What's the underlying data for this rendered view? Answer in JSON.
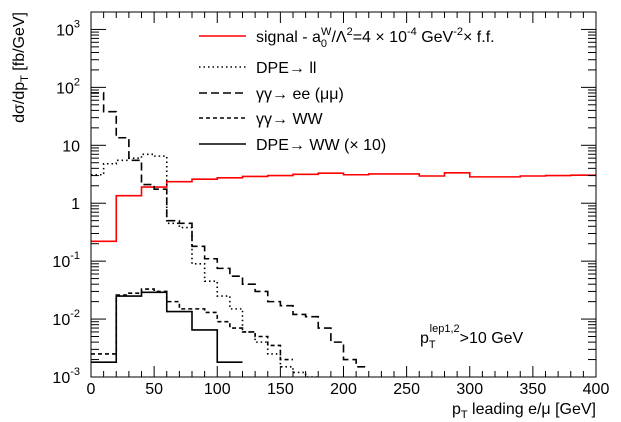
{
  "chart_data": {
    "type": "line",
    "drawstyle": "steps",
    "yscale": "log",
    "xlim": [
      0,
      400
    ],
    "ylim": [
      0.001,
      2000
    ],
    "xlabel": {
      "main": "p",
      "sub": "T",
      "rest": " leading e/μ [GeV]"
    },
    "ylabel": {
      "main": "dσ/dp",
      "sub": "T",
      "rest": " [fb/GeV]"
    },
    "x_ticks": [
      "0",
      "50",
      "100",
      "150",
      "200",
      "250",
      "300",
      "350",
      "400"
    ],
    "y_ticks": [
      {
        "base": "10",
        "exp": "-3",
        "v": 0.001
      },
      {
        "base": "10",
        "exp": "-2",
        "v": 0.01
      },
      {
        "base": "10",
        "exp": "-1",
        "v": 0.1
      },
      {
        "base": "1",
        "exp": "",
        "v": 1
      },
      {
        "base": "10",
        "exp": "",
        "v": 10
      },
      {
        "base": "10",
        "exp": "2",
        "v": 100
      },
      {
        "base": "10",
        "exp": "3",
        "v": 1000
      }
    ],
    "annotation": {
      "main": "p",
      "sub": "T",
      "sup": "lep1,2",
      "rest": ">10 GeV"
    },
    "series": [
      {
        "name": "signal - a0W/Λ2=4 × 10-4 GeV-2× f.f.",
        "legend": {
          "t1": "signal - a",
          "sub1": "0",
          "sup1": "W",
          "t2": "/Λ",
          "sup2": "2",
          "t3": "=4 × 10",
          "sup3": "-4",
          "t4": " GeV",
          "sup4": "-2",
          "t5": "× f.f."
        },
        "color": "#ff0000",
        "dash": "solid",
        "bin_edges": [
          0,
          20,
          40,
          60,
          80,
          100,
          120,
          140,
          160,
          180,
          200,
          220,
          240,
          260,
          280,
          300,
          320,
          340,
          360,
          380,
          400
        ],
        "values": [
          0.22,
          1.35,
          1.9,
          2.35,
          2.6,
          2.75,
          2.9,
          3.0,
          3.15,
          3.3,
          3.1,
          3.2,
          3.2,
          2.95,
          3.35,
          2.85,
          2.85,
          2.95,
          3.0,
          3.05
        ]
      },
      {
        "name": "DPE→ ll",
        "color": "#000000",
        "dash": "dotted",
        "bin_edges": [
          0,
          10,
          20,
          30,
          40,
          50,
          60,
          70,
          80,
          90,
          100,
          110,
          120,
          130,
          140,
          150,
          160,
          170,
          180
        ],
        "values": [
          3.1,
          4.8,
          5.5,
          6.0,
          7.0,
          6.5,
          0.45,
          0.38,
          0.09,
          0.045,
          0.025,
          0.015,
          0.006,
          0.004,
          0.0025,
          0.0015,
          0.0012,
          0.001
        ]
      },
      {
        "name": "γγ→ ee (μμ)",
        "color": "#000000",
        "dash": "dashed",
        "bin_edges": [
          0,
          10,
          20,
          30,
          40,
          50,
          60,
          70,
          80,
          90,
          100,
          110,
          120,
          130,
          140,
          150,
          160,
          170,
          180,
          190,
          200,
          210,
          220
        ],
        "values": [
          80,
          38,
          13.5,
          5.5,
          2.1,
          1.75,
          0.5,
          0.45,
          0.18,
          0.11,
          0.075,
          0.055,
          0.04,
          0.03,
          0.02,
          0.017,
          0.012,
          0.011,
          0.007,
          0.004,
          0.002,
          0.0015
        ]
      },
      {
        "name": "γγ→ WW",
        "color": "#000000",
        "dash": "shortdash",
        "bin_edges": [
          0,
          10,
          20,
          30,
          40,
          50,
          60,
          70,
          80,
          90,
          100,
          110,
          120,
          130,
          140,
          150,
          160
        ],
        "values": [
          0.0025,
          0.0025,
          0.026,
          0.028,
          0.033,
          0.03,
          0.02,
          0.015,
          0.015,
          0.013,
          0.009,
          0.007,
          0.006,
          0.005,
          0.0035,
          0.002
        ]
      },
      {
        "name": "DPE→ WW (× 10)",
        "color": "#000000",
        "dash": "solid",
        "bin_edges": [
          0,
          20,
          40,
          60,
          80,
          100,
          120
        ],
        "values": [
          0.0018,
          0.025,
          0.029,
          0.0135,
          0.0065,
          0.0018
        ]
      }
    ]
  }
}
